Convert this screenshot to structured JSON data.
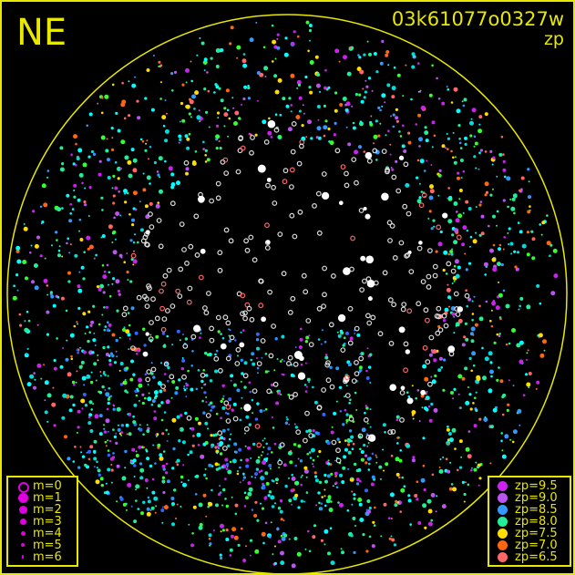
{
  "header": {
    "direction": "NE",
    "image_id": "03k61077o0327w",
    "mode": "zp"
  },
  "colors": {
    "frame": "#e8e800",
    "background": "#000000",
    "catalog_star": "#ffffff"
  },
  "magnitude_legend": [
    {
      "label": "m=0",
      "style": "open-ring"
    },
    {
      "label": "m=1"
    },
    {
      "label": "m=2"
    },
    {
      "label": "m=3"
    },
    {
      "label": "m=4"
    },
    {
      "label": "m=5"
    },
    {
      "label": "m=6"
    }
  ],
  "zp_legend": [
    {
      "label": "zp=9.5",
      "color": "#cc22ee"
    },
    {
      "label": "zp=9.0",
      "color": "#bb55ee"
    },
    {
      "label": "zp=8.5",
      "color": "#3399ff"
    },
    {
      "label": "zp=8.0",
      "color": "#22ee99"
    },
    {
      "label": "zp=7.5",
      "color": "#ffdd00"
    },
    {
      "label": "zp=7.0",
      "color": "#ff6611"
    },
    {
      "label": "zp=6.5",
      "color": "#ff6666"
    }
  ]
}
